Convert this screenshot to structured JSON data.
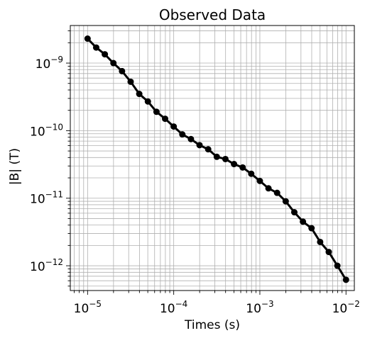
{
  "chart_data": {
    "type": "line",
    "title": "Observed Data",
    "xlabel": "Times (s)",
    "ylabel": "|B| (T)",
    "xscale": "log",
    "yscale": "log",
    "xlim": [
      6.3e-06,
      0.0125
    ],
    "ylim": [
      4.3e-13,
      3.6e-09
    ],
    "grid": "both major and minor",
    "x_ticks": [
      {
        "value": 1e-05,
        "base": "10",
        "exp": "−5"
      },
      {
        "value": 0.0001,
        "base": "10",
        "exp": "−4"
      },
      {
        "value": 0.001,
        "base": "10",
        "exp": "−3"
      },
      {
        "value": 0.01,
        "base": "10",
        "exp": "−2"
      }
    ],
    "y_ticks": [
      {
        "value": 1e-12,
        "base": "10",
        "exp": "−12"
      },
      {
        "value": 1e-11,
        "base": "10",
        "exp": "−11"
      },
      {
        "value": 1e-10,
        "base": "10",
        "exp": "−10"
      },
      {
        "value": 1e-09,
        "base": "10",
        "exp": "−9"
      }
    ],
    "line_color": "#000000",
    "grid_color": "#b0b0b0",
    "series": [
      {
        "marker": "circle",
        "x": [
          1e-05,
          1.259e-05,
          1.585e-05,
          1.995e-05,
          2.512e-05,
          3.162e-05,
          3.981e-05,
          5.012e-05,
          6.31e-05,
          7.943e-05,
          0.0001,
          0.0001259,
          0.0001585,
          0.0001995,
          0.0002512,
          0.0003162,
          0.0003981,
          0.0005012,
          0.000631,
          0.0007943,
          0.001,
          0.001259,
          0.001585,
          0.001995,
          0.002512,
          0.003162,
          0.003981,
          0.005012,
          0.00631,
          0.007943,
          0.01
        ],
        "y": [
          2.3e-09,
          1.7e-09,
          1.35e-09,
          1e-09,
          7.6e-10,
          5.3e-10,
          3.5e-10,
          2.7e-10,
          1.9e-10,
          1.5e-10,
          1.15e-10,
          8.8e-11,
          7.5e-11,
          6.1e-11,
          5.3e-11,
          4.1e-11,
          3.8e-11,
          3.2e-11,
          2.85e-11,
          2.3e-11,
          1.8e-11,
          1.4e-11,
          1.2e-11,
          9e-12,
          6.2e-12,
          4.5e-12,
          3.6e-12,
          2.25e-12,
          1.6e-12,
          1e-12,
          6.2e-13
        ]
      }
    ]
  }
}
